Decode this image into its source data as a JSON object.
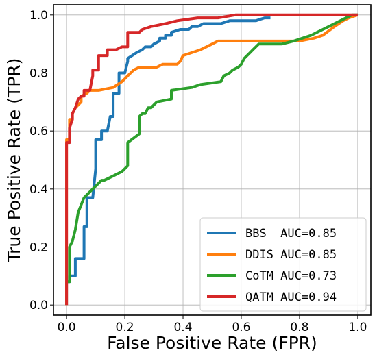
{
  "chart_data": {
    "type": "line",
    "title": "",
    "xlabel": "False Positive Rate (FPR)",
    "ylabel": "True Positive Rate (TPR)",
    "xlim": [
      -0.045,
      1.045
    ],
    "ylim": [
      -0.035,
      1.035
    ],
    "xticks": [
      "0.0",
      "0.2",
      "0.4",
      "0.6",
      "0.8",
      "1.0"
    ],
    "yticks": [
      "0.0",
      "0.2",
      "0.4",
      "0.6",
      "0.8",
      "1.0"
    ],
    "grid": true,
    "legend_position": "lower-right",
    "series": [
      {
        "name": "BBS",
        "label": "BBS  AUC=0.85",
        "color": "#1f77b4",
        "x": [
          0,
          0,
          0.01,
          0.01,
          0.03,
          0.03,
          0.06,
          0.06,
          0.07,
          0.07,
          0.09,
          0.1,
          0.1,
          0.12,
          0.12,
          0.14,
          0.15,
          0.16,
          0.16,
          0.18,
          0.18,
          0.2,
          0.21,
          0.21,
          0.24,
          0.26,
          0.27,
          0.29,
          0.3,
          0.32,
          0.32,
          0.34,
          0.34,
          0.36,
          0.36,
          0.39,
          0.42,
          0.43,
          0.45,
          0.47,
          0.5,
          0.53,
          0.56,
          0.65,
          0.68,
          0.7
        ],
        "y": [
          0,
          0.08,
          0.08,
          0.1,
          0.1,
          0.16,
          0.16,
          0.27,
          0.27,
          0.37,
          0.37,
          0.47,
          0.57,
          0.57,
          0.6,
          0.6,
          0.65,
          0.65,
          0.73,
          0.73,
          0.8,
          0.8,
          0.84,
          0.85,
          0.87,
          0.88,
          0.89,
          0.89,
          0.9,
          0.91,
          0.92,
          0.92,
          0.93,
          0.93,
          0.94,
          0.95,
          0.95,
          0.96,
          0.96,
          0.97,
          0.97,
          0.97,
          0.98,
          0.98,
          0.99,
          0.99
        ]
      },
      {
        "name": "DDIS",
        "label": "DDIS AUC=0.85",
        "color": "#ff7f0e",
        "x": [
          0,
          0,
          0.01,
          0.01,
          0.02,
          0.02,
          0.03,
          0.04,
          0.05,
          0.05,
          0.07,
          0.08,
          0.09,
          0.11,
          0.16,
          0.19,
          0.2,
          0.21,
          0.22,
          0.23,
          0.25,
          0.31,
          0.33,
          0.38,
          0.39,
          0.4,
          0.43,
          0.46,
          0.48,
          0.5,
          0.52,
          0.8,
          0.85,
          0.88,
          0.92,
          0.95,
          0.97,
          1.0
        ],
        "y": [
          0,
          0.57,
          0.57,
          0.64,
          0.64,
          0.66,
          0.68,
          0.69,
          0.7,
          0.72,
          0.73,
          0.74,
          0.74,
          0.74,
          0.75,
          0.77,
          0.78,
          0.79,
          0.8,
          0.81,
          0.82,
          0.82,
          0.83,
          0.83,
          0.84,
          0.86,
          0.87,
          0.88,
          0.89,
          0.9,
          0.91,
          0.91,
          0.92,
          0.93,
          0.96,
          0.98,
          0.99,
          1.0
        ]
      },
      {
        "name": "CoTM",
        "label": "CoTM AUC=0.73",
        "color": "#2ca02c",
        "x": [
          0,
          0.01,
          0.01,
          0.02,
          0.03,
          0.04,
          0.06,
          0.09,
          0.1,
          0.11,
          0.12,
          0.13,
          0.15,
          0.17,
          0.19,
          0.2,
          0.21,
          0.21,
          0.25,
          0.25,
          0.26,
          0.27,
          0.28,
          0.29,
          0.3,
          0.31,
          0.31,
          0.36,
          0.36,
          0.43,
          0.46,
          0.53,
          0.54,
          0.56,
          0.57,
          0.59,
          0.6,
          0.61,
          0.63,
          0.64,
          0.65,
          0.66,
          0.69,
          0.71,
          0.74,
          0.78,
          0.81,
          0.84,
          0.86,
          0.88,
          0.9,
          0.92,
          0.94,
          0.96,
          0.98,
          1.0
        ],
        "y": [
          0.08,
          0.08,
          0.2,
          0.22,
          0.26,
          0.32,
          0.37,
          0.4,
          0.41,
          0.42,
          0.43,
          0.43,
          0.44,
          0.45,
          0.46,
          0.47,
          0.48,
          0.56,
          0.59,
          0.65,
          0.66,
          0.66,
          0.68,
          0.68,
          0.69,
          0.7,
          0.7,
          0.71,
          0.74,
          0.75,
          0.76,
          0.77,
          0.79,
          0.8,
          0.81,
          0.82,
          0.83,
          0.85,
          0.87,
          0.88,
          0.89,
          0.9,
          0.9,
          0.9,
          0.9,
          0.91,
          0.92,
          0.93,
          0.94,
          0.95,
          0.96,
          0.97,
          0.98,
          0.99,
          1.0,
          1.0
        ]
      },
      {
        "name": "QATM",
        "label": "QATM AUC=0.94",
        "color": "#d62728",
        "x": [
          0,
          0,
          0.01,
          0.01,
          0.02,
          0.02,
          0.03,
          0.04,
          0.05,
          0.06,
          0.06,
          0.08,
          0.09,
          0.09,
          0.11,
          0.11,
          0.14,
          0.14,
          0.17,
          0.19,
          0.21,
          0.21,
          0.25,
          0.26,
          0.29,
          0.34,
          0.38,
          0.45,
          0.52,
          0.58,
          0.64,
          0.7,
          0.8,
          0.9,
          1.0
        ],
        "y": [
          0,
          0.56,
          0.56,
          0.61,
          0.64,
          0.66,
          0.68,
          0.71,
          0.72,
          0.72,
          0.74,
          0.74,
          0.79,
          0.81,
          0.81,
          0.86,
          0.86,
          0.88,
          0.88,
          0.89,
          0.89,
          0.94,
          0.94,
          0.95,
          0.96,
          0.97,
          0.98,
          0.99,
          0.99,
          1.0,
          1.0,
          1.0,
          1.0,
          1.0,
          1.0
        ]
      }
    ]
  }
}
